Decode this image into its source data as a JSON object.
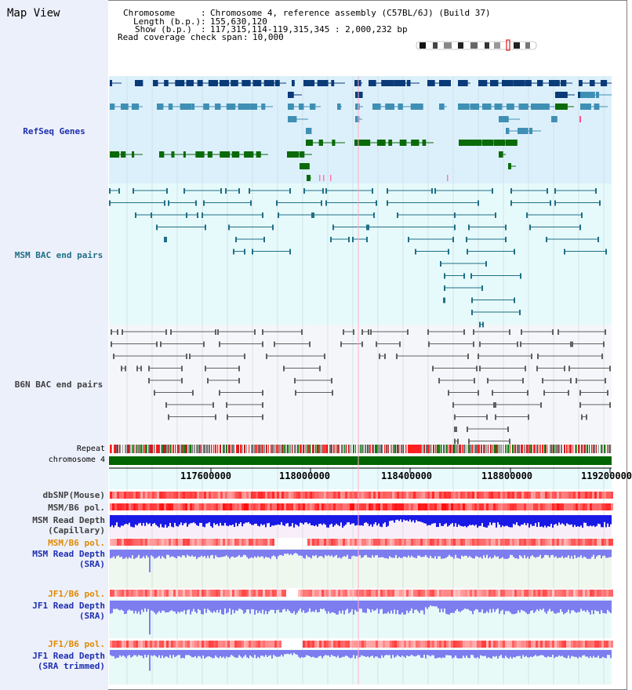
{
  "window": {
    "title": "Map View"
  },
  "header": {
    "chromosome_key": "Chromosome",
    "chromosome_val": "Chromosome 4, reference assembly (C57BL/6J) (Build 37)",
    "length_key": "Length (b.p.)",
    "length_val": "155,630,120",
    "show_key": "Show (b.p.)",
    "show_val": "117,315,114-119,315,345 : 2,000,232 bp",
    "coverage_key": "Read coverage check span",
    "coverage_val": "10,000"
  },
  "tracks": {
    "refseq": "RefSeq Genes",
    "msm_bac": "MSM BAC end pairs",
    "b6n_bac": "B6N BAC end pairs",
    "repeat": "Repeat",
    "chromosome": "chromosome 4",
    "dbsnp": "dbSNP(Mouse)",
    "msm_b6_pol1": "MSM/B6 pol.",
    "msm_depth_cap_1": "MSM Read Depth",
    "msm_depth_cap_2": "(Capillary)",
    "msm_b6_pol2": "MSM/B6 pol.",
    "msm_depth_sra_1": "MSM Read Depth",
    "msm_depth_sra_2": "(SRA)",
    "jf1_b6_pol1": "JF1/B6 pol.",
    "jf1_depth_sra_1": "JF1 Read Depth",
    "jf1_depth_sra_2": "(SRA)",
    "jf1_b6_pol2": "JF1/B6 pol.",
    "jf1_depth_trim_1": "JF1 Read Depth",
    "jf1_depth_trim_2": "(SRA trimmed)"
  },
  "axis": {
    "ticks": [
      "117600000",
      "118000000",
      "118400000",
      "118800000",
      "119200000"
    ]
  },
  "colors": {
    "refseq_bg": "#dcf0fb",
    "msm_bg": "#e6fafb",
    "b6n_bg": "#f4f6fa",
    "gene_dark": "#0a3a78",
    "gene_mid": "#3f8fb4",
    "gene_green": "#0a6a0a",
    "msm_line": "#1f6f86",
    "b6n_line": "#606060",
    "label_blue": "#1f2fb0",
    "label_orange": "#e08a00",
    "depth_blue": "#1a1ae6",
    "depth_light": "#7d7df0"
  }
}
